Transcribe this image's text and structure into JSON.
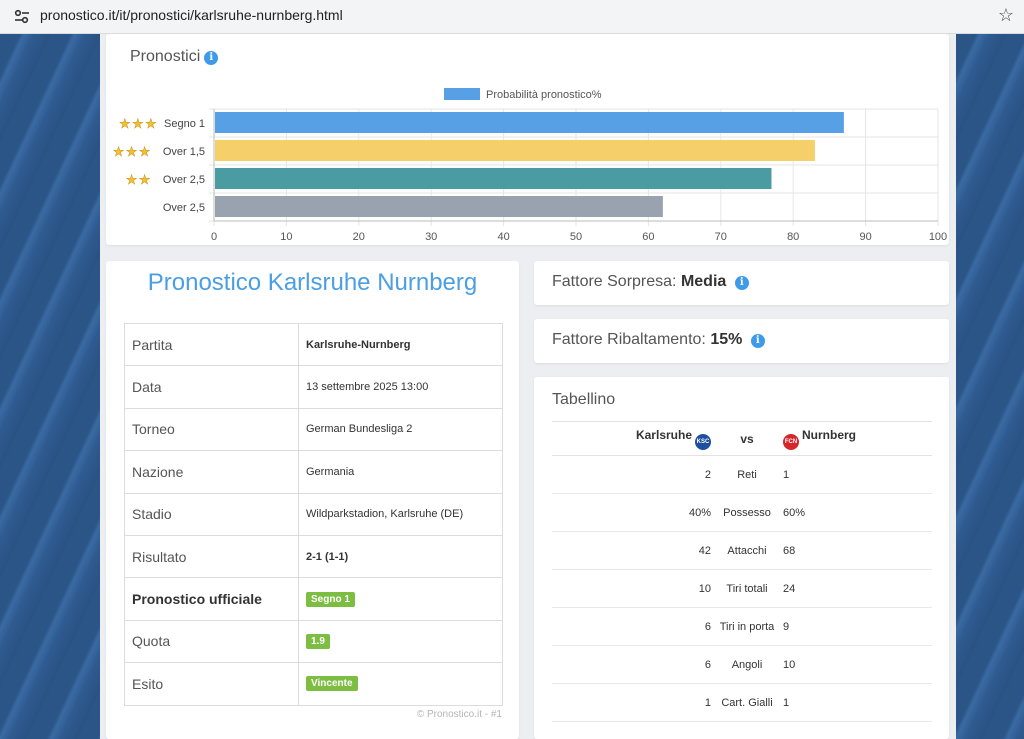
{
  "browser": {
    "url": "pronostico.it/it/pronostici/karlsruhe-nurnberg.html",
    "tune_icon": "tune-icon",
    "bookmark_icon": "star-outline-icon"
  },
  "pronostici": {
    "title": "Pronostici",
    "chart_data": {
      "type": "bar",
      "orientation": "horizontal",
      "categories": [
        "Segno 1",
        "Over 1,5",
        "Over 2,5",
        "Over 2,5"
      ],
      "stars": [
        3,
        3,
        2,
        0
      ],
      "series": [
        {
          "name": "Probabilità pronostico%",
          "values": [
            87,
            83,
            77,
            62
          ]
        }
      ],
      "colors": [
        "#57a0e5",
        "#f5cf69",
        "#4b9ba3",
        "#99a3b0"
      ],
      "xlim": [
        0,
        100
      ],
      "xticks": [
        0,
        10,
        20,
        30,
        40,
        50,
        60,
        70,
        80,
        90,
        100
      ],
      "grid": true,
      "legend": "top-center"
    }
  },
  "info": {
    "title": "Pronostico Karlsruhe Nurnberg",
    "rows": [
      {
        "label": "Partita",
        "value": "Karlsruhe-Nurnberg"
      },
      {
        "label": "Data",
        "value": "13 settembre 2025 13:00"
      },
      {
        "label": "Torneo",
        "value": "German Bundesliga 2"
      },
      {
        "label": "Nazione",
        "value": "Germania"
      },
      {
        "label": "Stadio",
        "value": "Wildparkstadion, Karlsruhe (DE)"
      },
      {
        "label": "Risultato",
        "value": "2-1 (1-1)"
      },
      {
        "label": "Pronostico ufficiale",
        "value": "Segno 1"
      },
      {
        "label": "Quota",
        "value": "1.9"
      },
      {
        "label": "Esito",
        "value": "Vincente"
      }
    ],
    "copyright": "© Pronostico.it - #1"
  },
  "sorpresa": {
    "label": "Fattore Sorpresa:",
    "value": "Media"
  },
  "ribaltamento": {
    "label": "Fattore Ribaltamento:",
    "value": "15%"
  },
  "tabellino": {
    "title": "Tabellino",
    "home": "Karlsruhe",
    "vs": "vs",
    "away": "Nurnberg",
    "rows": [
      {
        "home": "2",
        "stat": "Reti",
        "away": "1"
      },
      {
        "home": "40%",
        "stat": "Possesso",
        "away": "60%"
      },
      {
        "home": "42",
        "stat": "Attacchi",
        "away": "68"
      },
      {
        "home": "10",
        "stat": "Tiri totali",
        "away": "24"
      },
      {
        "home": "6",
        "stat": "Tiri in porta",
        "away": "9"
      },
      {
        "home": "6",
        "stat": "Angoli",
        "away": "10"
      },
      {
        "home": "1",
        "stat": "Cart. Gialli",
        "away": "1"
      }
    ]
  }
}
